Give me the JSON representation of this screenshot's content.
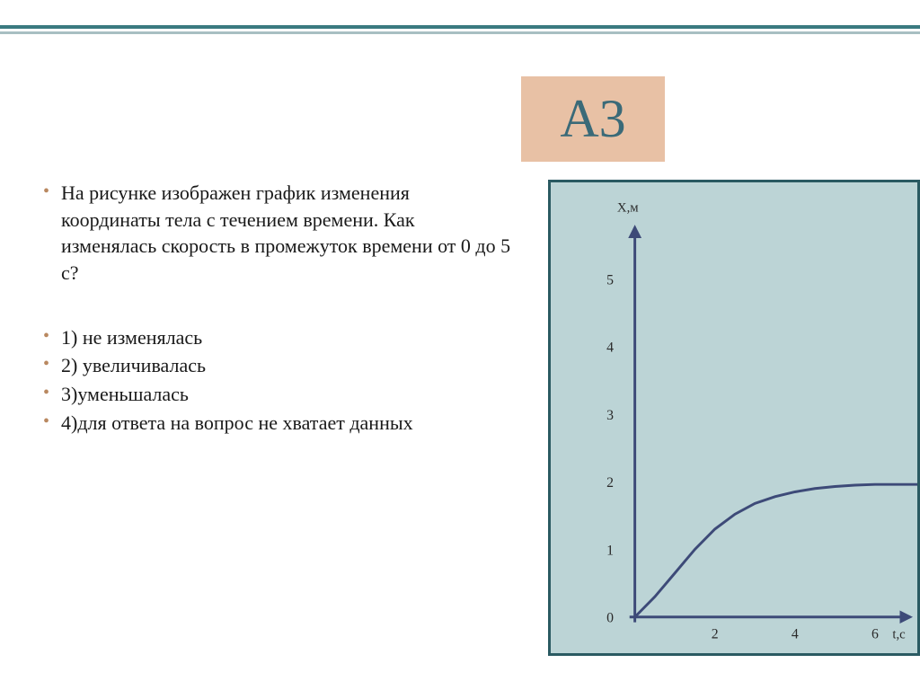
{
  "colors": {
    "badge_bg": "#e8c1a5",
    "badge_text": "#3a6a78",
    "bullet": "#b98860",
    "text": "#1a1a1a",
    "chart_bg": "#bcd4d6",
    "chart_border": "#2a5a62",
    "axis": "#3d4a78",
    "curve": "#3d4a78",
    "tick_text": "#2a2a2a"
  },
  "badge": {
    "label": "А3"
  },
  "question": {
    "prompt": "На рисунке изображен график изменения координаты тела с течением времени. Как изменялась скорость в промежуток времени от 0 до 5 с?",
    "options": [
      "1)  не изменялась",
      "2) увеличивалась",
      "3)уменьшалась",
      "4)для ответа на вопрос не хватает данных"
    ]
  },
  "chart": {
    "y_label": "X,м",
    "x_label": "t,с",
    "y_ticks": [
      0,
      1,
      2,
      3,
      4,
      5
    ],
    "x_ticks": [
      2,
      4,
      6
    ],
    "xlim": [
      0,
      7.5
    ],
    "ylim": [
      0,
      5.5
    ],
    "axis_width": 3,
    "curve_width": 3,
    "label_fontsize": 15,
    "tick_fontsize": 16,
    "curve_points": [
      [
        0.0,
        0.0
      ],
      [
        0.5,
        0.3
      ],
      [
        1.0,
        0.65
      ],
      [
        1.5,
        1.0
      ],
      [
        2.0,
        1.3
      ],
      [
        2.5,
        1.52
      ],
      [
        3.0,
        1.68
      ],
      [
        3.5,
        1.78
      ],
      [
        4.0,
        1.85
      ],
      [
        4.5,
        1.9
      ],
      [
        5.0,
        1.93
      ],
      [
        5.5,
        1.95
      ],
      [
        6.0,
        1.96
      ],
      [
        7.0,
        1.96
      ],
      [
        7.5,
        1.96
      ]
    ]
  }
}
